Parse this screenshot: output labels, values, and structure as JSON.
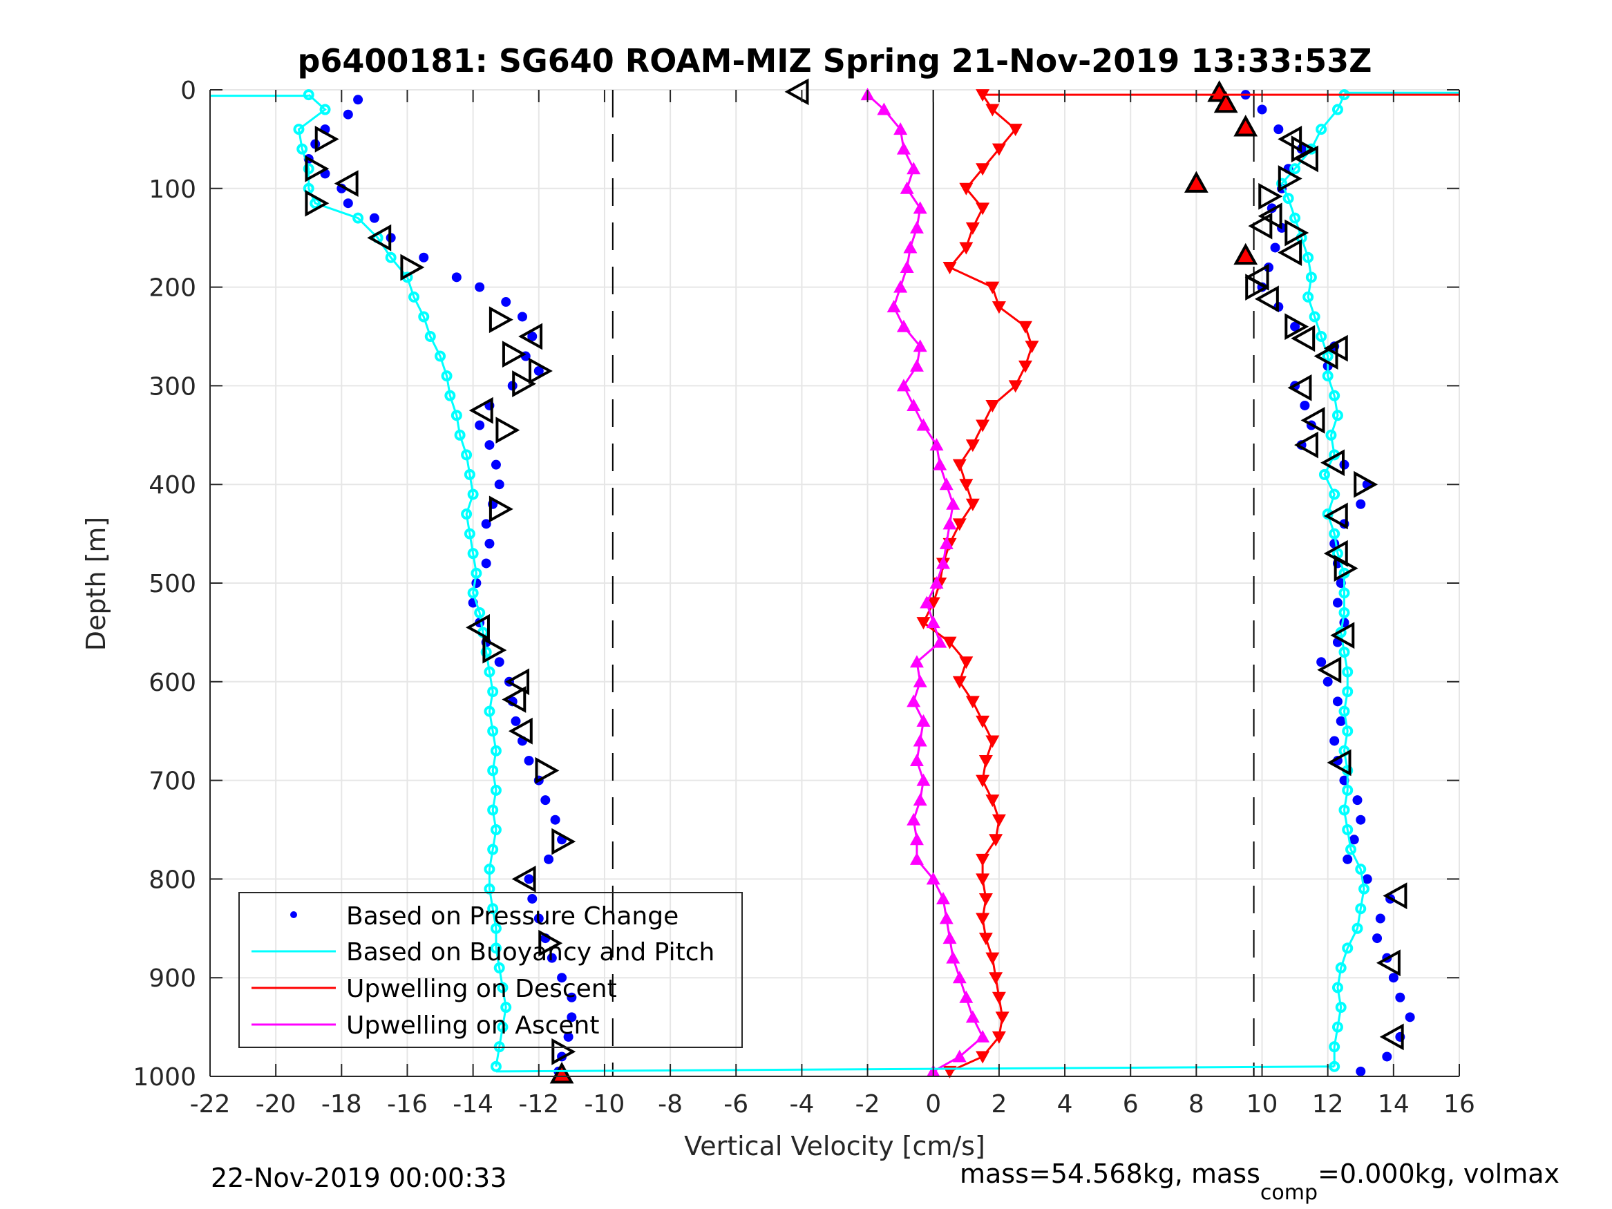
{
  "chart_data": {
    "type": "scatter",
    "title": "p6400181: SG640 ROAM-MIZ Spring 21-Nov-2019 13:33:53Z",
    "xlabel": "Vertical Velocity [cm/s]",
    "ylabel": "Depth [m]",
    "xlim": [
      -22,
      16
    ],
    "ylim": [
      1000,
      0
    ],
    "y_reversed": true,
    "grid": true,
    "xticks": [
      -22,
      -20,
      -18,
      -16,
      -14,
      -12,
      -10,
      -8,
      -6,
      -4,
      -2,
      0,
      2,
      4,
      6,
      8,
      10,
      12,
      14,
      16
    ],
    "yticks": [
      0,
      100,
      200,
      300,
      400,
      500,
      600,
      700,
      800,
      900,
      1000
    ],
    "reference_lines": [
      {
        "name": "zero-line",
        "x": 0,
        "style": "solid"
      },
      {
        "name": "descent-target",
        "x": -9.75,
        "style": "dashed"
      },
      {
        "name": "ascent-target",
        "x": 9.75,
        "style": "dashed"
      }
    ],
    "legend": {
      "position": "bottom-left",
      "entries": [
        {
          "label": "Based on Pressure Change",
          "color": "#0000ff",
          "style": "dot"
        },
        {
          "label": "Based on Buoyancy and Pitch",
          "color": "#00ffff",
          "style": "line"
        },
        {
          "label": "Upwelling on Descent",
          "color": "#ff0000",
          "style": "line"
        },
        {
          "label": "Upwelling on Ascent",
          "color": "#ff00ff",
          "style": "line"
        }
      ]
    },
    "series": [
      {
        "name": "Based on Pressure Change (descent)",
        "color": "#0000ff",
        "marker": "dot",
        "depth": [
          10,
          25,
          40,
          55,
          70,
          85,
          100,
          115,
          130,
          150,
          170,
          190,
          200,
          215,
          230,
          250,
          270,
          285,
          300,
          320,
          340,
          360,
          380,
          400,
          420,
          440,
          460,
          480,
          500,
          520,
          540,
          560,
          580,
          600,
          620,
          640,
          660,
          680,
          700,
          720,
          740,
          760,
          780,
          800,
          820,
          840,
          860,
          880,
          900,
          920,
          940,
          960,
          980,
          995
        ],
        "velocity": [
          -17.5,
          -17.8,
          -18.5,
          -18.8,
          -19.0,
          -18.5,
          -18.0,
          -17.8,
          -17.0,
          -16.5,
          -15.5,
          -14.5,
          -13.8,
          -13.0,
          -12.5,
          -12.2,
          -12.4,
          -12.0,
          -12.8,
          -13.5,
          -13.8,
          -13.5,
          -13.3,
          -13.2,
          -13.4,
          -13.6,
          -13.5,
          -13.6,
          -13.9,
          -14.0,
          -13.8,
          -13.6,
          -13.2,
          -12.9,
          -12.8,
          -12.7,
          -12.5,
          -12.3,
          -12.0,
          -11.8,
          -11.5,
          -11.3,
          -11.7,
          -12.3,
          -12.2,
          -12.0,
          -11.8,
          -11.6,
          -11.3,
          -11.0,
          -11.0,
          -11.1,
          -11.3,
          -11.4
        ]
      },
      {
        "name": "Based on Buoyancy and Pitch (descent)",
        "color": "#00ffff",
        "marker": "open-circle-line",
        "depth": [
          5,
          20,
          40,
          60,
          80,
          100,
          115,
          130,
          150,
          170,
          190,
          210,
          230,
          250,
          270,
          290,
          310,
          330,
          350,
          370,
          390,
          410,
          430,
          450,
          470,
          490,
          510,
          530,
          550,
          570,
          590,
          610,
          630,
          650,
          670,
          690,
          710,
          730,
          750,
          770,
          790,
          810,
          830,
          850,
          870,
          890,
          910,
          930,
          950,
          970,
          990
        ],
        "velocity": [
          -19.0,
          -18.5,
          -19.3,
          -19.2,
          -19.0,
          -19.0,
          -18.8,
          -17.5,
          -16.9,
          -16.5,
          -16.0,
          -15.8,
          -15.5,
          -15.3,
          -15.0,
          -14.8,
          -14.7,
          -14.5,
          -14.4,
          -14.2,
          -14.1,
          -14.0,
          -14.2,
          -14.1,
          -14.0,
          -13.9,
          -14.0,
          -13.8,
          -13.7,
          -13.6,
          -13.5,
          -13.4,
          -13.5,
          -13.4,
          -13.3,
          -13.4,
          -13.3,
          -13.4,
          -13.3,
          -13.4,
          -13.5,
          -13.5,
          -13.4,
          -13.3,
          -13.3,
          -13.2,
          -13.1,
          -13.0,
          -13.1,
          -13.2,
          -13.3
        ]
      },
      {
        "name": "Based on Pressure Change (ascent)",
        "color": "#0000ff",
        "marker": "dot",
        "depth": [
          995,
          980,
          960,
          940,
          920,
          900,
          880,
          860,
          840,
          820,
          800,
          780,
          760,
          740,
          720,
          700,
          680,
          660,
          640,
          620,
          600,
          580,
          560,
          540,
          520,
          500,
          480,
          460,
          440,
          420,
          400,
          380,
          360,
          340,
          320,
          300,
          280,
          260,
          240,
          220,
          200,
          180,
          160,
          140,
          120,
          100,
          80,
          60,
          40,
          20,
          5
        ],
        "velocity": [
          13.0,
          13.8,
          14.2,
          14.5,
          14.2,
          14.0,
          13.8,
          13.5,
          13.6,
          13.9,
          13.2,
          12.6,
          12.8,
          13.0,
          12.9,
          12.5,
          12.3,
          12.2,
          12.4,
          12.3,
          12.0,
          11.8,
          12.3,
          12.5,
          12.3,
          12.4,
          12.3,
          12.2,
          12.5,
          13.0,
          13.2,
          12.5,
          11.2,
          11.5,
          11.3,
          11.0,
          12.0,
          12.2,
          11.0,
          10.5,
          10.0,
          10.2,
          10.4,
          10.6,
          10.3,
          10.6,
          10.8,
          11.2,
          10.5,
          10.0,
          9.5
        ]
      },
      {
        "name": "Based on Buoyancy and Pitch (ascent)",
        "color": "#00ffff",
        "marker": "open-circle-line",
        "depth": [
          990,
          970,
          950,
          930,
          910,
          890,
          870,
          850,
          830,
          810,
          790,
          770,
          750,
          730,
          710,
          690,
          670,
          650,
          630,
          610,
          590,
          570,
          550,
          530,
          510,
          490,
          470,
          450,
          430,
          410,
          390,
          370,
          350,
          330,
          310,
          290,
          270,
          250,
          230,
          210,
          190,
          170,
          150,
          130,
          110,
          95,
          80,
          60,
          40,
          20,
          5
        ],
        "velocity": [
          12.2,
          12.2,
          12.3,
          12.4,
          12.3,
          12.4,
          12.6,
          12.9,
          13.0,
          13.1,
          13.0,
          12.7,
          12.6,
          12.5,
          12.6,
          12.6,
          12.5,
          12.6,
          12.5,
          12.6,
          12.6,
          12.5,
          12.4,
          12.5,
          12.5,
          12.5,
          12.3,
          12.2,
          12.0,
          12.2,
          11.9,
          12.2,
          12.1,
          12.3,
          12.2,
          12.0,
          12.0,
          11.8,
          11.6,
          11.4,
          11.5,
          11.4,
          11.2,
          11.0,
          10.8,
          10.6,
          11.0,
          11.5,
          11.8,
          12.3,
          12.5
        ]
      },
      {
        "name": "Upwelling on Descent",
        "color": "#ff0000",
        "marker": "down-triangle-line",
        "depth": [
          5,
          20,
          40,
          60,
          80,
          100,
          120,
          140,
          160,
          180,
          200,
          220,
          240,
          260,
          280,
          300,
          320,
          340,
          360,
          380,
          400,
          420,
          440,
          460,
          480,
          500,
          520,
          540,
          560,
          580,
          600,
          620,
          640,
          660,
          680,
          700,
          720,
          740,
          760,
          780,
          800,
          820,
          840,
          860,
          880,
          900,
          920,
          940,
          960,
          980,
          995
        ],
        "velocity": [
          1.5,
          1.8,
          2.5,
          2.0,
          1.5,
          1.0,
          1.5,
          1.2,
          1.0,
          0.5,
          1.8,
          2.0,
          2.8,
          3.0,
          2.8,
          2.5,
          1.8,
          1.5,
          1.2,
          0.8,
          1.0,
          1.2,
          0.8,
          0.5,
          0.3,
          0.2,
          0.0,
          -0.3,
          0.5,
          1.0,
          0.8,
          1.2,
          1.5,
          1.8,
          1.6,
          1.5,
          1.8,
          2.0,
          1.9,
          1.5,
          1.5,
          1.6,
          1.5,
          1.6,
          1.8,
          1.9,
          2.0,
          2.1,
          2.0,
          1.5,
          0.5
        ]
      },
      {
        "name": "Upwelling on Ascent",
        "color": "#ff00ff",
        "marker": "up-triangle-line",
        "depth": [
          995,
          980,
          960,
          940,
          920,
          900,
          880,
          860,
          840,
          820,
          800,
          780,
          760,
          740,
          720,
          700,
          680,
          660,
          640,
          620,
          600,
          580,
          560,
          540,
          520,
          500,
          480,
          460,
          440,
          420,
          400,
          380,
          360,
          340,
          320,
          300,
          280,
          260,
          240,
          220,
          200,
          180,
          160,
          140,
          120,
          100,
          80,
          60,
          40,
          20,
          5
        ],
        "velocity": [
          0.0,
          0.8,
          1.5,
          1.2,
          1.0,
          0.8,
          0.6,
          0.5,
          0.4,
          0.3,
          0.0,
          -0.5,
          -0.5,
          -0.6,
          -0.4,
          -0.3,
          -0.5,
          -0.4,
          -0.3,
          -0.6,
          -0.4,
          -0.5,
          0.2,
          0.0,
          -0.2,
          0.1,
          0.3,
          0.4,
          0.5,
          0.6,
          0.4,
          0.2,
          0.1,
          -0.3,
          -0.6,
          -0.9,
          -0.5,
          -0.4,
          -0.9,
          -1.2,
          -1.0,
          -0.8,
          -0.7,
          -0.5,
          -0.4,
          -0.8,
          -0.6,
          -0.9,
          -1.0,
          -1.5,
          -2.0
        ]
      },
      {
        "name": "Descent turn markers (open triangles)",
        "color": "#000000",
        "marker": "open-triangle",
        "points": [
          [
            -18.5,
            50,
            "right"
          ],
          [
            -18.8,
            80,
            "right"
          ],
          [
            -17.8,
            95,
            "left"
          ],
          [
            -18.8,
            115,
            "right"
          ],
          [
            -16.8,
            150,
            "left"
          ],
          [
            -15.9,
            180,
            "right"
          ],
          [
            -13.2,
            233,
            "right"
          ],
          [
            -12.2,
            250,
            "left"
          ],
          [
            -12.8,
            268,
            "right"
          ],
          [
            -12.0,
            285,
            "right"
          ],
          [
            -12.5,
            298,
            "right"
          ],
          [
            -13.7,
            325,
            "left"
          ],
          [
            -13.0,
            345,
            "right"
          ],
          [
            -13.2,
            425,
            "right"
          ],
          [
            -13.8,
            545,
            "left"
          ],
          [
            -13.4,
            568,
            "right"
          ],
          [
            -12.6,
            600,
            "left"
          ],
          [
            -12.7,
            618,
            "left"
          ],
          [
            -12.5,
            650,
            "left"
          ],
          [
            -11.8,
            690,
            "right"
          ],
          [
            -11.3,
            762,
            "right"
          ],
          [
            -12.4,
            800,
            "left"
          ],
          [
            -11.7,
            865,
            "right"
          ],
          [
            -11.3,
            975,
            "right"
          ]
        ]
      },
      {
        "name": "Ascent turn markers (open triangles)",
        "color": "#000000",
        "marker": "open-triangle",
        "points": [
          [
            -4.1,
            2,
            "left"
          ],
          [
            10.9,
            50,
            "left"
          ],
          [
            11.2,
            60,
            "right"
          ],
          [
            11.4,
            70,
            "left"
          ],
          [
            10.8,
            90,
            "right"
          ],
          [
            10.2,
            108,
            "right"
          ],
          [
            10.3,
            128,
            "left"
          ],
          [
            10.0,
            138,
            "left"
          ],
          [
            11.0,
            145,
            "right"
          ],
          [
            10.9,
            165,
            "left"
          ],
          [
            9.9,
            190,
            "left"
          ],
          [
            9.8,
            200,
            "right"
          ],
          [
            10.2,
            212,
            "left"
          ],
          [
            11.0,
            240,
            "right"
          ],
          [
            11.3,
            252,
            "left"
          ],
          [
            12.3,
            262,
            "left"
          ],
          [
            12.0,
            270,
            "left"
          ],
          [
            11.2,
            302,
            "left"
          ],
          [
            11.6,
            335,
            "left"
          ],
          [
            11.4,
            360,
            "left"
          ],
          [
            12.2,
            378,
            "left"
          ],
          [
            13.1,
            400,
            "right"
          ],
          [
            12.3,
            432,
            "left"
          ],
          [
            12.3,
            470,
            "left"
          ],
          [
            12.5,
            485,
            "right"
          ],
          [
            12.5,
            553,
            "left"
          ],
          [
            12.1,
            588,
            "left"
          ],
          [
            12.4,
            682,
            "left"
          ],
          [
            14.1,
            817,
            "left"
          ],
          [
            13.9,
            885,
            "left"
          ],
          [
            14.0,
            960,
            "left"
          ]
        ]
      },
      {
        "name": "Surface / bottom filled markers (red triangles)",
        "color": "#ff0000",
        "marker": "filled-up-triangle",
        "points": [
          [
            8.7,
            3
          ],
          [
            8.9,
            14
          ],
          [
            9.5,
            38
          ],
          [
            8.0,
            95
          ],
          [
            9.5,
            168
          ],
          [
            -11.3,
            998
          ]
        ]
      }
    ],
    "annotations": {
      "timestamp": "22-Nov-2019 00:00:33",
      "mass_text": "mass=54.568kg, mass",
      "mass_sub": "comp",
      "mass_rest": "=0.000kg, volmax"
    }
  }
}
